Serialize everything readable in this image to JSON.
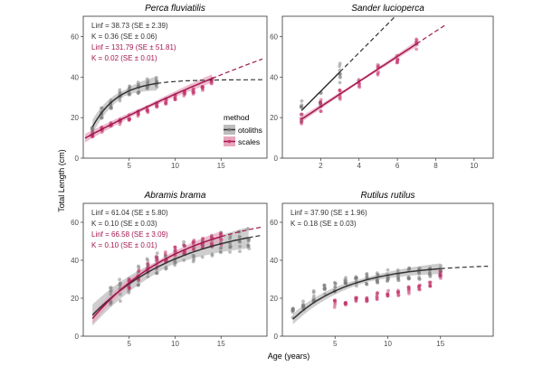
{
  "chart_data": {
    "type": "scatter",
    "xlabel": "Age (years)",
    "ylabel": "Total Length (cm)",
    "legend": {
      "title": "method",
      "items": [
        {
          "label": "otoliths",
          "color": "#333333"
        },
        {
          "label": "scales",
          "color": "#a3164f"
        }
      ],
      "placement": "inside-top-left-panel"
    },
    "colors": {
      "otoliths": "#333333",
      "scales": "#a3164f",
      "band_otoliths": "#bdbdbd",
      "band_scales": "#e7a7bd",
      "points_otoliths": "#7a7a7a",
      "points_scales": "#c4336c"
    },
    "panels": [
      {
        "title": "Perca fluviatilis",
        "xlim": [
          0,
          20
        ],
        "ylim": [
          0,
          70
        ],
        "xticks": [
          5,
          10,
          15
        ],
        "yticks": [
          0,
          20,
          40,
          60
        ],
        "annotations": [
          {
            "text": "Linf = 38.73 (SE ± 2.39)",
            "method": "otoliths"
          },
          {
            "text": "K = 0.36 (SE ± 0.06)",
            "method": "otoliths"
          },
          {
            "text": "Linf = 131.79 (SE ± 51.81)",
            "method": "scales"
          },
          {
            "text": "K = 0.02 (SE ± 0.01)",
            "method": "scales"
          }
        ],
        "series": [
          {
            "name": "otoliths",
            "linf": 38.73,
            "k": 0.36,
            "t0": -0.4,
            "fit_range": [
              1,
              8
            ],
            "extrap_range": [
              8,
              19.5
            ],
            "band": 2.5,
            "ages": [
              1,
              2,
              3,
              4,
              5,
              6,
              7,
              8
            ],
            "mean_lengths": [
              14,
              22,
              27,
              31,
              33,
              35,
              37,
              38
            ],
            "spread": 3
          },
          {
            "name": "scales",
            "linf": 131.79,
            "k": 0.02,
            "t0": -3.7,
            "fit_range": [
              0.2,
              14
            ],
            "extrap_range": [
              14,
              19.5
            ],
            "band": 1.5,
            "ages": [
              1,
              2,
              3,
              4,
              5,
              6,
              7,
              8,
              9,
              10,
              11,
              12,
              13,
              14
            ],
            "mean_lengths": [
              12,
              14,
              16,
              18,
              20,
              22,
              24,
              26,
              28,
              30,
              32,
              33,
              35,
              38
            ],
            "spread": 1.5
          }
        ]
      },
      {
        "title": "Sander lucioperca",
        "xlim": [
          0,
          11
        ],
        "ylim": [
          0,
          70
        ],
        "xticks": [
          2,
          4,
          6,
          8,
          10
        ],
        "yticks": [
          0,
          20,
          40,
          60
        ],
        "annotations": [],
        "series": [
          {
            "name": "otoliths",
            "linear": true,
            "slope": 9.5,
            "intercept": 14,
            "fit_range": [
              1,
              3
            ],
            "extrap_range": [
              3,
              10.5
            ],
            "band": 0,
            "ages": [
              1,
              2,
              3
            ],
            "mean_lengths": [
              24,
              32,
              42
            ],
            "spread": 6
          },
          {
            "name": "scales",
            "linear": true,
            "slope": 6.2,
            "intercept": 13,
            "fit_range": [
              1,
              7
            ],
            "extrap_range": [
              7,
              8.5
            ],
            "band": 1,
            "ages": [
              1,
              2,
              3,
              4,
              5,
              6,
              7
            ],
            "mean_lengths": [
              20,
              26,
              31,
              38,
              44,
              50,
              56
            ],
            "spread": 3
          }
        ]
      },
      {
        "title": "Abramis brama",
        "xlim": [
          0,
          20
        ],
        "ylim": [
          0,
          70
        ],
        "xticks": [
          5,
          10,
          15
        ],
        "yticks": [
          0,
          20,
          40,
          60
        ],
        "annotations": [
          {
            "text": "Linf = 61.04 (SE ± 5.80)",
            "method": "otoliths"
          },
          {
            "text": "K = 0.10 (SE ± 0.03)",
            "method": "otoliths"
          },
          {
            "text": "Linf = 66.58 (SE ± 3.09)",
            "method": "scales"
          },
          {
            "text": "K = 0.10 (SE ± 0.01)",
            "method": "scales"
          }
        ],
        "series": [
          {
            "name": "otoliths",
            "linf": 61.04,
            "k": 0.1,
            "t0": -1.0,
            "fit_range": [
              1,
              18
            ],
            "extrap_range": [
              18,
              19.5
            ],
            "band": 4,
            "ages": [
              3,
              4,
              5,
              6,
              7,
              8,
              9,
              10,
              11,
              12,
              13,
              14,
              15,
              16,
              17,
              18
            ],
            "mean_lengths": [
              20,
              24,
              28,
              32,
              35,
              38,
              40,
              42,
              44,
              45,
              46,
              48,
              49,
              50,
              50,
              51
            ],
            "spread": 6
          },
          {
            "name": "scales",
            "linf": 66.58,
            "k": 0.1,
            "t0": -0.5,
            "fit_range": [
              1,
              15
            ],
            "extrap_range": [
              15,
              19.5
            ],
            "band": 2,
            "ages": [
              5,
              6,
              7,
              8,
              9,
              10,
              11,
              12,
              13,
              14,
              15
            ],
            "mean_lengths": [
              28,
              32,
              36,
              39,
              42,
              44,
              46,
              48,
              49,
              50,
              51
            ],
            "spread": 3
          }
        ]
      },
      {
        "title": "Rutilus rutilus",
        "xlim": [
          0,
          20
        ],
        "ylim": [
          0,
          70
        ],
        "xticks": [
          5,
          10,
          15
        ],
        "yticks": [
          0,
          20,
          40,
          60
        ],
        "annotations": [
          {
            "text": "Linf = 37.90 (SE ± 1.96)",
            "method": "otoliths"
          },
          {
            "text": "K = 0.18 (SE ± 0.03)",
            "method": "otoliths"
          }
        ],
        "series": [
          {
            "name": "otoliths",
            "linf": 37.9,
            "k": 0.18,
            "t0": -0.5,
            "fit_range": [
              1,
              15
            ],
            "extrap_range": [
              15,
              19.5
            ],
            "band": 2,
            "ages": [
              1,
              2,
              3,
              4,
              5,
              6,
              7,
              8,
              9,
              10,
              11,
              12,
              13,
              14,
              15
            ],
            "mean_lengths": [
              12,
              16,
              21,
              24,
              26,
              28,
              29,
              30,
              31,
              32,
              32,
              33,
              33,
              34,
              35
            ],
            "spread": 3
          },
          {
            "name": "scales",
            "points_only": true,
            "ages": [
              5,
              6,
              7,
              8,
              9,
              10,
              11,
              12,
              13,
              14,
              15
            ],
            "mean_lengths": [
              17,
              18,
              19,
              20,
              21,
              22,
              23,
              24,
              26,
              28,
              32
            ],
            "spread": 2
          }
        ]
      }
    ]
  }
}
